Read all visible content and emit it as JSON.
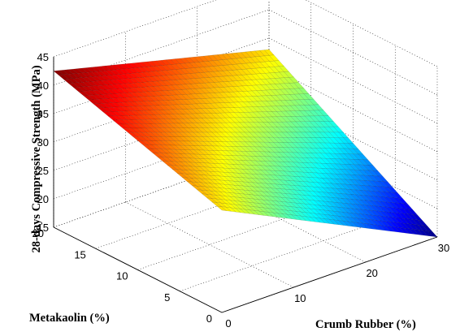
{
  "chart_data": {
    "type": "surface",
    "title": "",
    "xlabel": "Crumb Rubber (%)",
    "ylabel": "Metakaolin (%)",
    "zlabel": "28-days Compressive Strength (MPa)",
    "xlim": [
      0,
      30
    ],
    "ylim": [
      0,
      20
    ],
    "zlim": [
      15,
      45
    ],
    "x_ticks": [
      "0",
      "10",
      "20",
      "30"
    ],
    "y_ticks": [
      "0",
      "5",
      "10",
      "15",
      "20"
    ],
    "z_ticks": [
      "15",
      "20",
      "25",
      "30",
      "35",
      "40",
      "45"
    ],
    "colormap": "jet",
    "grid": true,
    "surface_corners": [
      {
        "crumb_rubber": 0,
        "metakaolin": 20,
        "strength": 42.5
      },
      {
        "crumb_rubber": 30,
        "metakaolin": 20,
        "strength": 33
      },
      {
        "crumb_rubber": 0,
        "metakaolin": 0,
        "strength": 33
      },
      {
        "crumb_rubber": 30,
        "metakaolin": 0,
        "strength": 15
      }
    ]
  }
}
